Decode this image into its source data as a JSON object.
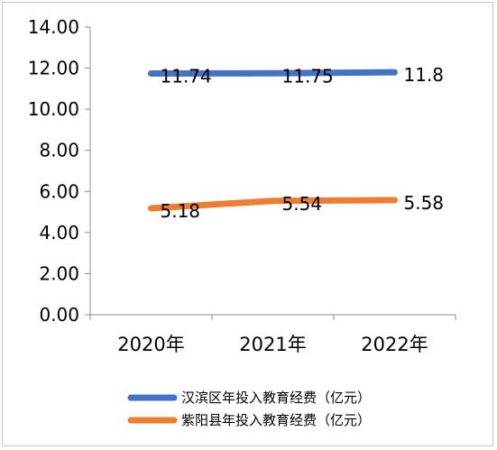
{
  "chart_data": {
    "type": "line",
    "categories": [
      "2020年",
      "2021年",
      "2022年"
    ],
    "series": [
      {
        "name": "汉滨区年投入教育经费（亿元）",
        "values": [
          11.74,
          11.75,
          11.8
        ],
        "labels": [
          "11.74",
          "11.75",
          "11.8"
        ],
        "color": "#4472C4"
      },
      {
        "name": "紫阳县年投入教育经费（亿元）",
        "values": [
          5.18,
          5.54,
          5.58
        ],
        "labels": [
          "5.18",
          "5.54",
          "5.58"
        ],
        "color": "#ED7D31"
      }
    ],
    "yticks": [
      "0.00",
      "2.00",
      "4.00",
      "6.00",
      "8.00",
      "10.00",
      "12.00",
      "14.00"
    ],
    "ylim": [
      0,
      14
    ],
    "grid": false,
    "legend_position": "bottom"
  }
}
